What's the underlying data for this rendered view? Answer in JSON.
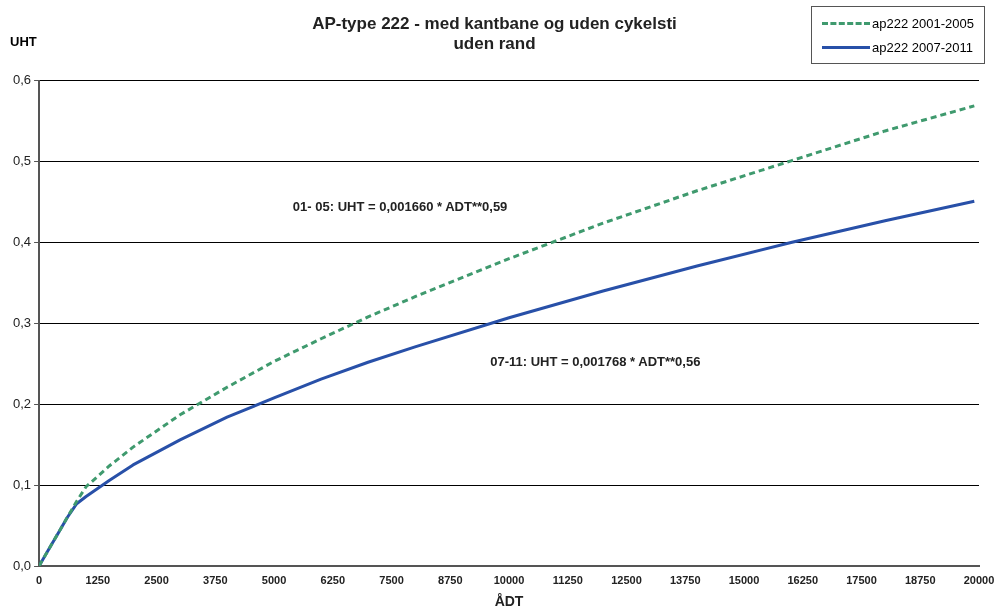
{
  "chart_data": {
    "type": "line",
    "title": "AP-type 222 - med kantbane og uden cykelsti\nuden rand",
    "xlabel": "ÅDT",
    "ylabel": "UHT",
    "xlim": [
      0,
      20000
    ],
    "xticks": [
      0,
      1250,
      2500,
      3750,
      5000,
      6250,
      7500,
      8750,
      10000,
      11250,
      12500,
      13750,
      15000,
      16250,
      17500,
      18750,
      20000
    ],
    "ylim": [
      0,
      0.6
    ],
    "yticks": [
      {
        "value": 0,
        "label": "0,0"
      },
      {
        "value": 0.1,
        "label": "0,1"
      },
      {
        "value": 0.2,
        "label": "0,2"
      },
      {
        "value": 0.3,
        "label": "0,3"
      },
      {
        "value": 0.4,
        "label": "0,4"
      },
      {
        "value": 0.5,
        "label": "0,5"
      },
      {
        "value": 0.6,
        "label": "0,6"
      }
    ],
    "grid": "y",
    "legend": "top right",
    "marker": "none",
    "annotations": [
      "01- 05: UHT = 0,001660 * ADT**0,59",
      "07-11: UHT = 0,001768 * ADT**0,56"
    ],
    "series": [
      {
        "name": "ap222 2001-2005",
        "color": "#3f9a6e",
        "line_style": "dashed",
        "x": [
          0,
          200,
          400,
          600,
          800,
          1000,
          1500,
          2000,
          3000,
          4000,
          5000,
          6000,
          7000,
          8000,
          10000,
          12000,
          14000,
          16000,
          18000,
          19900
        ],
        "values": [
          0,
          0.02,
          0.04,
          0.06,
          0.08,
          0.098,
          0.124,
          0.147,
          0.187,
          0.221,
          0.253,
          0.281,
          0.308,
          0.333,
          0.38,
          0.424,
          0.464,
          0.501,
          0.538,
          0.569
        ]
      },
      {
        "name": "ap222 2007-2011",
        "color": "#2850a8",
        "line_style": "solid",
        "x": [
          0,
          200,
          400,
          600,
          800,
          1000,
          1500,
          2000,
          3000,
          4000,
          5000,
          6000,
          7000,
          8000,
          10000,
          12000,
          14000,
          16000,
          18000,
          19900
        ],
        "values": [
          0,
          0.02,
          0.04,
          0.06,
          0.077,
          0.086,
          0.106,
          0.125,
          0.156,
          0.184,
          0.208,
          0.231,
          0.252,
          0.271,
          0.307,
          0.34,
          0.371,
          0.4,
          0.427,
          0.451
        ]
      }
    ]
  }
}
